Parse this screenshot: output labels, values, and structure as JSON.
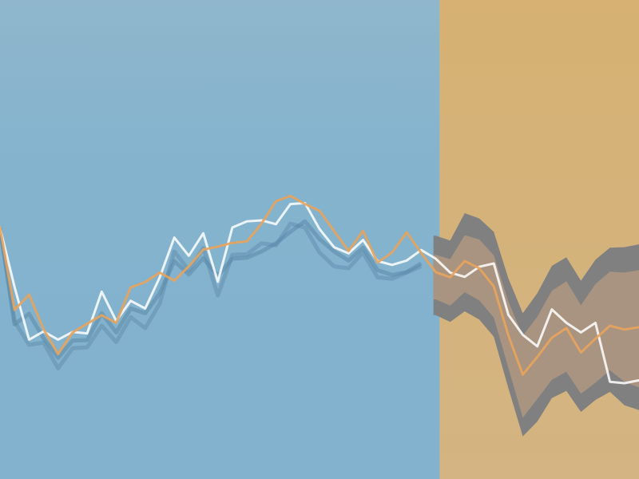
{
  "chart_data": {
    "type": "line",
    "title": "",
    "xlabel": "",
    "ylabel": "",
    "grid": false,
    "legend": "none",
    "xlim": [
      0,
      44
    ],
    "ylim": [
      0,
      100
    ],
    "history_end": 30,
    "x": [
      0,
      1,
      2,
      3,
      4,
      5,
      6,
      7,
      8,
      9,
      10,
      11,
      12,
      13,
      14,
      15,
      16,
      17,
      18,
      19,
      20,
      21,
      22,
      23,
      24,
      25,
      26,
      27,
      28,
      29,
      30,
      31,
      32,
      33,
      34,
      35,
      36,
      37,
      38,
      39,
      40,
      41,
      42,
      43,
      44
    ],
    "series": [
      {
        "role": "actual",
        "color": "#ffffff",
        "values": [
          52.5,
          40.1,
          29.1,
          30.8,
          29.1,
          30.7,
          30.4,
          39.1,
          33.0,
          37.2,
          35.6,
          42.1,
          50.4,
          46.6,
          51.3,
          41.2,
          52.5,
          53.8,
          54.0,
          53.2,
          57.4,
          57.6,
          52.2,
          48.4,
          47.1,
          49.9,
          45.5,
          44.7,
          45.6,
          47.8,
          46.0,
          43.1,
          42.2,
          44.3,
          45.0,
          34.3,
          30.1,
          27.7,
          35.4,
          32.6,
          30.6,
          32.6,
          20.3,
          20.0,
          20.6
        ]
      },
      {
        "role": "fitted-forecast",
        "color": "#e8a35c",
        "values": [
          52.5,
          35.3,
          38.5,
          31.3,
          26.1,
          30.6,
          32.4,
          34.2,
          32.6,
          40.0,
          41.1,
          43.1,
          41.4,
          44.4,
          47.9,
          48.5,
          49.3,
          49.6,
          53.3,
          58.0,
          59.1,
          57.4,
          56.0,
          51.8,
          47.6,
          51.8,
          45.2,
          47.3,
          51.5,
          47.2,
          43.2,
          42.1,
          45.5,
          44.0,
          40.2,
          30.0,
          21.8,
          25.5,
          29.5,
          31.5,
          26.4,
          29.3,
          32.0,
          31.2,
          31.7
        ]
      }
    ],
    "band_outer": {
      "color": "#808080",
      "lower": [
        0,
        0,
        0,
        0,
        0,
        0,
        0,
        0,
        0,
        0,
        0,
        0,
        0,
        0,
        0,
        0,
        0,
        0,
        0,
        0,
        0,
        0,
        0,
        0,
        0,
        0,
        0,
        0,
        0,
        0,
        34.2,
        32.8,
        35.0,
        33.3,
        29.7,
        19.0,
        8.9,
        12.0,
        16.9,
        18.4,
        14.0,
        16.5,
        18.2,
        15.4,
        14.4
      ],
      "upper": [
        0,
        0,
        0,
        0,
        0,
        0,
        0,
        0,
        0,
        0,
        0,
        0,
        0,
        0,
        0,
        0,
        0,
        0,
        0,
        0,
        0,
        0,
        0,
        0,
        0,
        0,
        0,
        0,
        0,
        0,
        50.8,
        49.8,
        55.5,
        54.4,
        51.6,
        41.9,
        34.6,
        38.8,
        44.5,
        46.3,
        41.4,
        45.8,
        48.3,
        48.4,
        49.0
      ]
    },
    "band_inner": {
      "color": "#a89480",
      "lower": [
        0,
        0,
        0,
        0,
        0,
        0,
        0,
        0,
        0,
        0,
        0,
        0,
        0,
        0,
        0,
        0,
        0,
        0,
        0,
        0,
        0,
        0,
        0,
        0,
        0,
        0,
        0,
        0,
        0,
        0,
        37.5,
        36.2,
        39.0,
        37.3,
        33.7,
        23.2,
        12.8,
        16.7,
        20.7,
        22.4,
        17.8,
        20.1,
        22.7,
        20.3,
        19.1
      ],
      "upper": [
        0,
        0,
        0,
        0,
        0,
        0,
        0,
        0,
        0,
        0,
        0,
        0,
        0,
        0,
        0,
        0,
        0,
        0,
        0,
        0,
        0,
        0,
        0,
        0,
        0,
        0,
        0,
        0,
        0,
        0,
        46.8,
        45.9,
        50.9,
        50.0,
        46.7,
        37.1,
        29.9,
        33.9,
        39.3,
        41.3,
        36.3,
        40.7,
        43.3,
        43.1,
        43.6
      ]
    },
    "shadow_traces": {
      "color": "#5a88a8",
      "a": [
        52.5,
        32.3,
        34.5,
        29.4,
        25.3,
        28.9,
        29.0,
        34.6,
        30.6,
        35.6,
        34.6,
        38.8,
        45.5,
        42.7,
        46.1,
        42.4,
        46.0,
        46.2,
        47.5,
        49.2,
        51.6,
        53.8,
        50.1,
        47.5,
        45.6,
        48.3,
        43.6,
        42.6,
        43.2,
        45.0
      ],
      "b": [
        52.5,
        32.9,
        28.0,
        28.5,
        23.1,
        27.3,
        27.5,
        32.0,
        28.6,
        33.8,
        31.5,
        36.6,
        47.5,
        43.6,
        48.2,
        38.3,
        46.8,
        46.9,
        49.2,
        48.8,
        53.3,
        52.5,
        47.3,
        44.4,
        44.0,
        47.3,
        42.1,
        41.8,
        43.1,
        44.4
      ]
    },
    "colors": {
      "history_bg": "#84b3ce",
      "forecast_bg": "#d4b27a"
    }
  }
}
